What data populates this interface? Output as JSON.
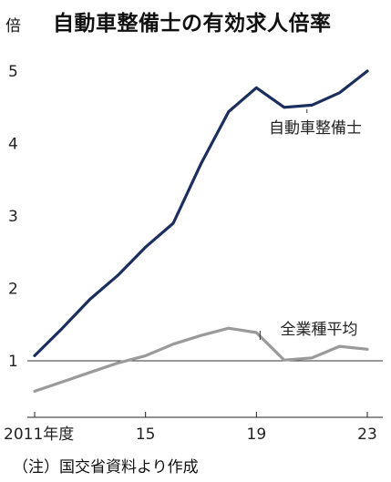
{
  "chart_data": {
    "type": "line",
    "title": "自動車整備士の有効求人倍率",
    "unit_label": "倍",
    "x": [
      "2011",
      "2012",
      "2013",
      "2014",
      "2015",
      "2016",
      "2017",
      "2018",
      "2019",
      "2020",
      "2021",
      "2022",
      "2023"
    ],
    "x_tick_labels": [
      {
        "x": "2011",
        "label": "2011年度"
      },
      {
        "x": "2015",
        "label": "15"
      },
      {
        "x": "2019",
        "label": "19"
      },
      {
        "x": "2023",
        "label": "23"
      }
    ],
    "ylim": [
      0.5,
      5.3
    ],
    "y_ticks": [
      1,
      2,
      3,
      4,
      5
    ],
    "reference_line": 1,
    "grid": false,
    "series": [
      {
        "name": "自動車整備士",
        "color": "#1b2e5e",
        "values": [
          1.07,
          1.45,
          1.85,
          2.18,
          2.57,
          2.9,
          3.72,
          4.44,
          4.77,
          4.5,
          4.53,
          4.7,
          5.0
        ]
      },
      {
        "name": "全業種平均",
        "color": "#9a9a9a",
        "values": [
          0.58,
          0.71,
          0.84,
          0.97,
          1.07,
          1.23,
          1.35,
          1.45,
          1.39,
          1.01,
          1.04,
          1.2,
          1.16
        ]
      }
    ],
    "note": "（注）国交省資料より作成"
  }
}
